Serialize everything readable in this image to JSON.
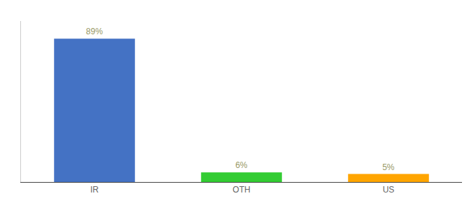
{
  "chart_data": {
    "type": "bar",
    "categories": [
      "IR",
      "OTH",
      "US"
    ],
    "values": [
      89,
      6,
      5
    ],
    "value_labels": [
      "89%",
      "6%",
      "5%"
    ],
    "colors": [
      "#4472C4",
      "#33CC33",
      "#FFA500"
    ],
    "ylim": [
      0,
      100
    ],
    "data_labels": true,
    "tick_labels": "x",
    "grid": false
  }
}
